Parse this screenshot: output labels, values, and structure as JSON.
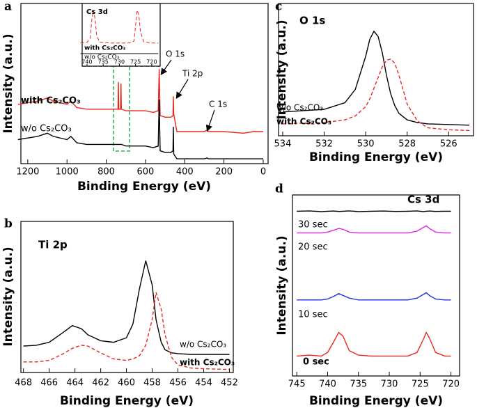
{
  "chart_data": [
    {
      "type": "line",
      "panel": "a",
      "x_label": "Binding Energy (eV)",
      "y_label": "Intensity (a.u.)",
      "xlim": [
        1235,
        -25
      ],
      "xticks": [
        1200,
        1000,
        800,
        600,
        400,
        200,
        0
      ],
      "ylim": [
        0,
        10
      ],
      "annotations": [
        "O 1s",
        "Ti 2p",
        "C 1s"
      ],
      "series": [
        {
          "name": "with Cs₂CO₃",
          "color": "#e8261f",
          "dash": false,
          "x": [
            1250,
            1200,
            1150,
            1100,
            1070,
            1000,
            980,
            950,
            900,
            850,
            800,
            740,
            738,
            736,
            727,
            725,
            723,
            700,
            650,
            600,
            560,
            535,
            530,
            525,
            500,
            470,
            460,
            458,
            456,
            440,
            400,
            350,
            300,
            285,
            280,
            200,
            100,
            50,
            0
          ],
          "values": [
            3.7,
            3.8,
            3.9,
            4.1,
            3.9,
            3.7,
            3.9,
            3.5,
            3.4,
            3.4,
            3.4,
            3.4,
            5.1,
            3.4,
            3.4,
            5.0,
            3.4,
            3.3,
            3.3,
            3.3,
            3.2,
            3.3,
            5.9,
            3.0,
            2.9,
            2.9,
            3.0,
            4.2,
            3.1,
            2.0,
            2.0,
            2.0,
            2.0,
            2.1,
            2.0,
            2.0,
            1.9,
            2.0,
            2.0
          ]
        },
        {
          "name": "w/o Cs₂CO₃",
          "color": "#000000",
          "dash": false,
          "x": [
            1250,
            1200,
            1150,
            1100,
            1070,
            1000,
            980,
            950,
            900,
            850,
            800,
            740,
            738,
            736,
            727,
            725,
            723,
            700,
            650,
            600,
            560,
            535,
            530,
            525,
            500,
            470,
            460,
            458,
            456,
            440,
            400,
            350,
            300,
            285,
            280,
            200,
            100,
            50,
            0
          ],
          "values": [
            1.5,
            1.6,
            1.7,
            1.9,
            1.7,
            1.5,
            1.7,
            1.3,
            1.2,
            1.2,
            1.2,
            1.2,
            1.2,
            1.2,
            1.2,
            1.2,
            1.2,
            1.1,
            1.1,
            1.1,
            1.0,
            1.1,
            4.0,
            0.8,
            0.7,
            0.7,
            0.8,
            2.3,
            0.6,
            0.3,
            0.3,
            0.3,
            0.3,
            0.35,
            0.3,
            0.3,
            0.3,
            0.3,
            0.3
          ]
        }
      ]
    },
    {
      "type": "line",
      "title": "Cs 3d",
      "xlim": [
        741.5,
        717.4
      ],
      "xticks": [
        740,
        735,
        730,
        725,
        720
      ],
      "ylim": [
        0,
        10
      ],
      "series": [
        {
          "name": "with Cs₂CO₃",
          "color": "#e8261f",
          "dash": true,
          "x": [
            742,
            740,
            739,
            738.5,
            738,
            737.5,
            737,
            736,
            733,
            730,
            727,
            725.5,
            725,
            724.5,
            724,
            723.5,
            722.5,
            720,
            718
          ],
          "values": [
            3.7,
            3.8,
            4.5,
            7.5,
            8.9,
            7.5,
            4.8,
            3.8,
            3.7,
            3.7,
            3.7,
            4.0,
            6.5,
            8.9,
            8.2,
            5.5,
            3.9,
            3.7,
            3.7
          ]
        },
        {
          "name": "w/o Cs₂CO₃",
          "color": "#000000",
          "dash": false,
          "x": [
            742,
            718
          ],
          "values": [
            2.0,
            2.0
          ]
        }
      ]
    },
    {
      "type": "line",
      "panel": "b",
      "title": "Ti 2p",
      "x_label": "Binding Energy (eV)",
      "y_label": "Intensity (a.u.)",
      "xlim": [
        468.2,
        451.7
      ],
      "xticks": [
        468,
        466,
        464,
        462,
        460,
        458,
        456,
        454,
        452
      ],
      "ylim": [
        0,
        10
      ],
      "series": [
        {
          "name": "w/o Cs₂CO₃",
          "color": "#000000",
          "dash": false,
          "x": [
            468,
            467,
            466,
            465,
            464.2,
            463.5,
            463,
            462,
            461,
            460,
            459.5,
            459,
            458.5,
            458,
            457.7,
            457.3,
            457,
            456.5,
            456,
            455,
            454,
            452
          ],
          "values": [
            1.75,
            1.8,
            2.0,
            2.6,
            3.1,
            2.9,
            2.5,
            2.1,
            2.0,
            2.3,
            3.2,
            5.5,
            7.4,
            5.8,
            3.5,
            2.0,
            1.5,
            1.3,
            1.25,
            1.2,
            1.2,
            1.2
          ]
        },
        {
          "name": "with Cs₂CO₃",
          "color": "#e8261f",
          "dash": true,
          "x": [
            468,
            467,
            466,
            465,
            464.2,
            463.5,
            463,
            462,
            461,
            460,
            459.5,
            459,
            458.5,
            458,
            457.7,
            457.3,
            457,
            456.5,
            456,
            455,
            454,
            452
          ],
          "values": [
            0.7,
            0.7,
            0.8,
            1.2,
            1.6,
            1.8,
            1.75,
            1.3,
            0.9,
            0.8,
            0.9,
            1.1,
            1.8,
            3.5,
            5.3,
            4.2,
            2.5,
            1.0,
            0.5,
            0.3,
            0.25,
            0.2
          ]
        }
      ]
    },
    {
      "type": "line",
      "panel": "c",
      "title": "O 1s",
      "x_label": "Binding Energy (eV)",
      "y_label": "Intensity (a.u.)",
      "xlim": [
        534.2,
        524.8
      ],
      "xticks": [
        534,
        532,
        530,
        528,
        526
      ],
      "ylim": [
        0,
        10
      ],
      "series": [
        {
          "name": "w/o Cs₂CO₃",
          "color": "#000000",
          "dash": false,
          "x": [
            534,
            533,
            532,
            531,
            530.5,
            530,
            529.8,
            529.6,
            529.4,
            529.2,
            529,
            528.8,
            528.6,
            528.4,
            528,
            527.5,
            527,
            526,
            525
          ],
          "values": [
            1.8,
            1.9,
            2.0,
            2.5,
            3.5,
            6.0,
            7.3,
            7.9,
            7.5,
            6.3,
            4.6,
            3.2,
            2.3,
            1.7,
            1.2,
            1.0,
            0.9,
            0.85,
            0.8
          ]
        },
        {
          "name": "with Cs₂CO₃",
          "color": "#e8261f",
          "dash": true,
          "x": [
            534,
            533,
            532,
            531,
            530.5,
            530,
            529.8,
            529.6,
            529.4,
            529.2,
            529,
            528.8,
            528.6,
            528.4,
            528,
            527.5,
            527,
            526,
            525
          ],
          "values": [
            0.9,
            0.95,
            1.0,
            1.2,
            1.5,
            2.2,
            2.8,
            3.6,
            4.4,
            5.2,
            5.7,
            5.8,
            5.5,
            4.6,
            2.4,
            1.1,
            0.6,
            0.45,
            0.4
          ]
        }
      ]
    },
    {
      "type": "line",
      "panel": "d",
      "title": "Cs 3d",
      "x_label": "Binding Energy (eV)",
      "y_label": "Intensity (a.u.)",
      "xlim": [
        745.7,
        718.6
      ],
      "xticks": [
        745,
        740,
        735,
        730,
        725,
        720
      ],
      "ylim": [
        0,
        10
      ],
      "series": [
        {
          "name": "30 sec",
          "color": "#000000",
          "dash": false,
          "x": [
            745,
            743,
            741,
            740,
            739,
            738.2,
            737.5,
            736.5,
            735,
            733,
            731,
            729,
            727,
            725.5,
            724.5,
            724,
            723.5,
            722.5,
            721,
            720
          ],
          "values": [
            9.1,
            9.12,
            9.08,
            9.1,
            9.11,
            9.09,
            9.1,
            9.12,
            9.08,
            9.1,
            9.11,
            9.09,
            9.1,
            9.12,
            9.08,
            9.1,
            9.11,
            9.09,
            9.1,
            9.1
          ]
        },
        {
          "name": "20 sec",
          "color": "#e020e0",
          "dash": false,
          "x": [
            745,
            743,
            741,
            740,
            739,
            738.2,
            737.5,
            736.5,
            735,
            733,
            731,
            729,
            727,
            725.5,
            724.5,
            724,
            723.5,
            722.5,
            721,
            720
          ],
          "values": [
            7.9,
            7.9,
            7.9,
            7.95,
            8.05,
            8.15,
            8.1,
            7.95,
            7.9,
            7.9,
            7.9,
            7.9,
            7.9,
            8.0,
            8.2,
            8.3,
            8.15,
            7.95,
            7.9,
            7.9
          ]
        },
        {
          "name": "10 sec",
          "color": "#1f2fe0",
          "dash": false,
          "x": [
            745,
            743,
            741,
            740,
            739,
            738.2,
            737.5,
            736.5,
            735,
            733,
            731,
            729,
            727,
            725.5,
            724.5,
            724,
            723.5,
            722.5,
            721,
            720
          ],
          "values": [
            4.2,
            4.2,
            4.2,
            4.25,
            4.4,
            4.55,
            4.45,
            4.3,
            4.2,
            4.2,
            4.2,
            4.2,
            4.2,
            4.3,
            4.5,
            4.6,
            4.45,
            4.25,
            4.2,
            4.2
          ]
        },
        {
          "name": "0 sec",
          "color": "#e8261f",
          "dash": false,
          "x": [
            745,
            743,
            741,
            740,
            739,
            738.2,
            737.5,
            736.5,
            735,
            733,
            731,
            729,
            727,
            725.5,
            724.5,
            724,
            723.5,
            722.5,
            721,
            720
          ],
          "values": [
            1.1,
            1.15,
            1.1,
            1.3,
            1.9,
            2.4,
            2.2,
            1.4,
            1.15,
            1.1,
            1.1,
            1.1,
            1.1,
            1.3,
            2.0,
            2.4,
            2.1,
            1.3,
            1.1,
            1.1
          ]
        }
      ]
    }
  ]
}
